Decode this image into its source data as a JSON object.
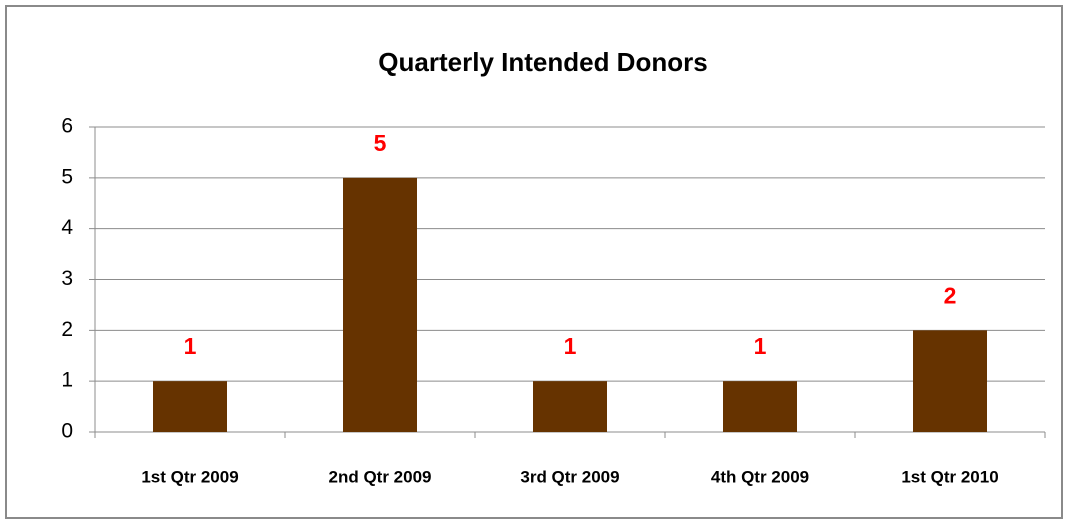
{
  "chart_data": {
    "type": "bar",
    "title": "Quarterly Intended Donors",
    "categories": [
      "1st Qtr 2009",
      "2nd Qtr 2009",
      "3rd Qtr 2009",
      "4th Qtr 2009",
      "1st Qtr 2010"
    ],
    "values": [
      1,
      5,
      1,
      1,
      2
    ],
    "color": "#663300",
    "label_color": "#ff0000",
    "ylim": [
      0,
      6
    ],
    "yticks": [
      0,
      1,
      2,
      3,
      4,
      5,
      6
    ],
    "grid": true
  }
}
